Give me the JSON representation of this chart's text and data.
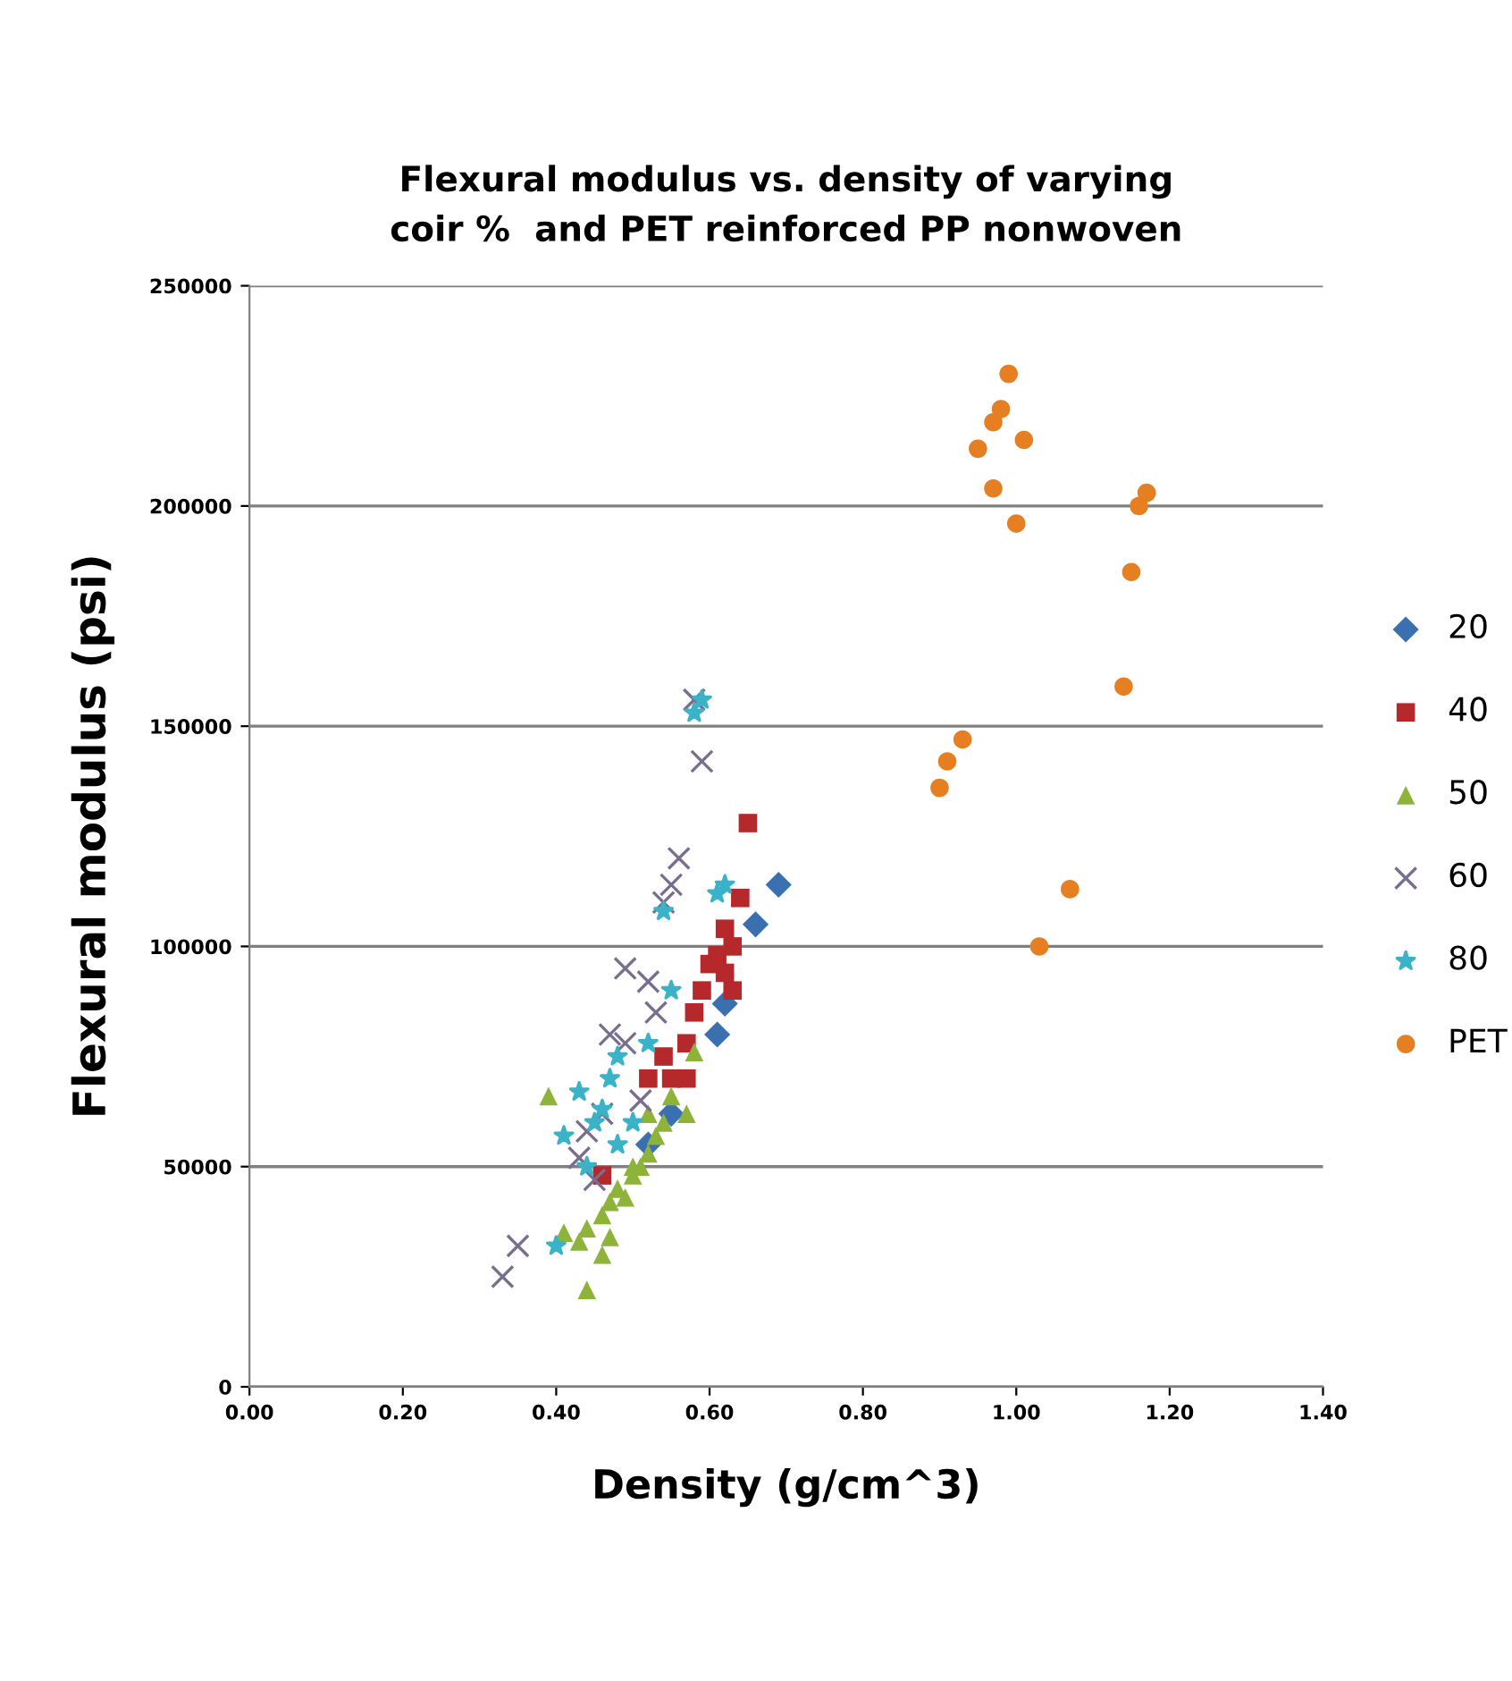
{
  "chart_data": {
    "type": "scatter",
    "title": "Flexural modulus vs. density of varying\ncoir %  and PET reinforced PP nonwoven",
    "xlabel": "Density (g/cm^3)",
    "ylabel": "Flexural modulus (psi)",
    "xlim": [
      0,
      1.4
    ],
    "ylim": [
      0,
      250000
    ],
    "xticks": [
      {
        "value": 0,
        "label": "0.00"
      },
      {
        "value": 0.2,
        "label": "0.20"
      },
      {
        "value": 0.4,
        "label": "0.40"
      },
      {
        "value": 0.6,
        "label": "0.60"
      },
      {
        "value": 0.8,
        "label": "0.80"
      },
      {
        "value": 1.0,
        "label": "1.00"
      },
      {
        "value": 1.2,
        "label": "1.20"
      },
      {
        "value": 1.4,
        "label": "1.40"
      }
    ],
    "yticks": [
      0,
      50000,
      100000,
      150000,
      200000,
      250000
    ],
    "grid": "y",
    "legend": "right",
    "series": [
      {
        "name": "20",
        "color": "#3a6fb0",
        "marker": "diamond",
        "x": [
          0.69,
          0.66,
          0.61,
          0.62,
          0.55,
          0.52
        ],
        "values": [
          114000,
          105000,
          80000,
          87000,
          62000,
          55000
        ]
      },
      {
        "name": "40",
        "color": "#b5282c",
        "marker": "square",
        "x": [
          0.65,
          0.64,
          0.62,
          0.61,
          0.63,
          0.63,
          0.59,
          0.58,
          0.57,
          0.55,
          0.52,
          0.54,
          0.57,
          0.46,
          0.6,
          0.62
        ],
        "values": [
          128000,
          111000,
          104000,
          98000,
          100000,
          90000,
          90000,
          85000,
          78000,
          70000,
          70000,
          75000,
          70000,
          48000,
          96000,
          94000
        ]
      },
      {
        "name": "50",
        "color": "#8db33a",
        "marker": "triangle",
        "x": [
          0.39,
          0.44,
          0.41,
          0.43,
          0.44,
          0.46,
          0.46,
          0.47,
          0.48,
          0.49,
          0.5,
          0.51,
          0.52,
          0.53,
          0.54,
          0.52,
          0.57,
          0.55,
          0.58,
          0.47,
          0.5
        ],
        "values": [
          66000,
          22000,
          35000,
          33000,
          36000,
          30000,
          39000,
          42000,
          45000,
          43000,
          48000,
          50000,
          53000,
          57000,
          60000,
          62000,
          62000,
          66000,
          76000,
          34000,
          50000
        ]
      },
      {
        "name": "60",
        "color": "#7a6e8e",
        "marker": "cross",
        "x": [
          0.33,
          0.35,
          0.59,
          0.58,
          0.56,
          0.55,
          0.54,
          0.49,
          0.52,
          0.47,
          0.49,
          0.44,
          0.46,
          0.43,
          0.53,
          0.45,
          0.51
        ],
        "values": [
          25000,
          32000,
          142000,
          156000,
          120000,
          114000,
          110000,
          95000,
          92000,
          80000,
          78000,
          58000,
          62000,
          52000,
          85000,
          47000,
          65000
        ]
      },
      {
        "name": "80",
        "color": "#3ab3c8",
        "marker": "star",
        "x": [
          0.59,
          0.58,
          0.62,
          0.61,
          0.54,
          0.41,
          0.43,
          0.45,
          0.47,
          0.48,
          0.44,
          0.4,
          0.5,
          0.55,
          0.52,
          0.46,
          0.48
        ],
        "values": [
          156000,
          153000,
          114000,
          112000,
          108000,
          57000,
          67000,
          60000,
          70000,
          55000,
          50000,
          32000,
          60000,
          90000,
          78000,
          63000,
          75000
        ]
      },
      {
        "name": "PET",
        "color": "#e67e22",
        "marker": "circle",
        "x": [
          0.99,
          0.98,
          0.97,
          0.95,
          1.01,
          0.97,
          1.0,
          1.16,
          1.17,
          1.15,
          1.14,
          0.93,
          0.91,
          0.9,
          1.07,
          1.03
        ],
        "values": [
          230000,
          222000,
          219000,
          213000,
          215000,
          204000,
          196000,
          200000,
          203000,
          185000,
          159000,
          147000,
          142000,
          136000,
          113000,
          100000
        ]
      }
    ]
  }
}
